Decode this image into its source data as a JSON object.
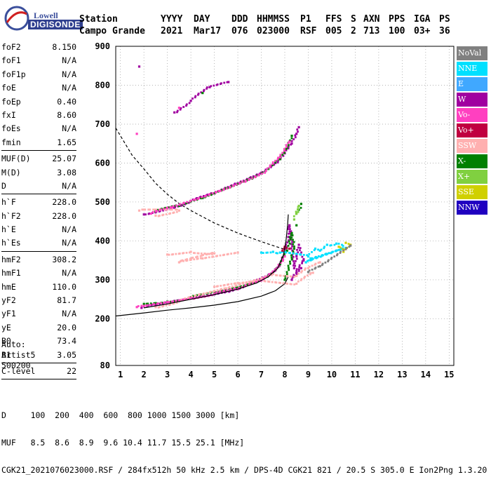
{
  "logo": {
    "line1": "Lowell",
    "line2": "DIGISONDE"
  },
  "header": {
    "station_label": "Station",
    "station_name": "Campo Grande",
    "yyyy_label": "YYYY",
    "yyyy": "2021",
    "day_label": "DAY",
    "day": "Mar17",
    "ddd_label": "DDD",
    "ddd": "076",
    "hhmmss_label": "HHMMSS",
    "hhmmss": "023000",
    "p1_label": "P1",
    "p1": "RSF",
    "ffs_label": "FFS",
    "ffs": "005",
    "s_label": "S",
    "s": "2",
    "axn_label": "AXN",
    "axn": "713",
    "pps_label": "PPS",
    "pps": "100",
    "iga_label": "IGA",
    "iga": "03+",
    "ps_label": "PS",
    "ps": "36"
  },
  "params": {
    "group1": [
      {
        "name": "foF2",
        "value": "8.150"
      },
      {
        "name": "foF1",
        "value": "N/A"
      },
      {
        "name": "foF1p",
        "value": "N/A"
      },
      {
        "name": "foE",
        "value": "N/A"
      },
      {
        "name": "foEp",
        "value": "0.40"
      },
      {
        "name": "fxI",
        "value": "8.60"
      },
      {
        "name": "foEs",
        "value": "N/A"
      },
      {
        "name": "fmin",
        "value": "1.65"
      }
    ],
    "group2": [
      {
        "name": "MUF(D)",
        "value": "25.07"
      },
      {
        "name": "M(D)",
        "value": "3.08"
      },
      {
        "name": "D",
        "value": "N/A"
      }
    ],
    "group3": [
      {
        "name": "h`F",
        "value": "228.0"
      },
      {
        "name": "h`F2",
        "value": "228.0"
      },
      {
        "name": "h`E",
        "value": "N/A"
      },
      {
        "name": "h`Es",
        "value": "N/A"
      }
    ],
    "group4": [
      {
        "name": "hmF2",
        "value": "308.2"
      },
      {
        "name": "hmF1",
        "value": "N/A"
      },
      {
        "name": "hmE",
        "value": "110.0"
      },
      {
        "name": "yF2",
        "value": "81.7"
      },
      {
        "name": "yF1",
        "value": "N/A"
      },
      {
        "name": "yE",
        "value": "20.0"
      },
      {
        "name": "B0",
        "value": "73.4"
      },
      {
        "name": "B1",
        "value": "3.05"
      }
    ],
    "group5": [
      {
        "name": "C-level",
        "value": "22"
      }
    ],
    "auto_line1": "Auto:",
    "auto_line2": "Artist5",
    "auto_line3": "500200"
  },
  "legend": [
    {
      "label": "NoVal",
      "color": "#808080"
    },
    {
      "label": "NNE",
      "color": "#00e0ff"
    },
    {
      "label": "E",
      "color": "#40a8ff"
    },
    {
      "label": "W",
      "color": "#a000a0"
    },
    {
      "label": "Vo-",
      "color": "#ff40c0"
    },
    {
      "label": "Vo+",
      "color": "#c00040"
    },
    {
      "label": "SSW",
      "color": "#ffb0b0"
    },
    {
      "label": "X-",
      "color": "#008000"
    },
    {
      "label": "X+",
      "color": "#80d040"
    },
    {
      "label": "SSE",
      "color": "#d0d000"
    },
    {
      "label": "NNW",
      "color": "#2000c0"
    }
  ],
  "chart_data": {
    "type": "scatter",
    "xlim": [
      0.8,
      15.2
    ],
    "ylim": [
      80,
      900
    ],
    "x_ticks": [
      1,
      2,
      3,
      4,
      5,
      6,
      7,
      8,
      9,
      10,
      11,
      12,
      13,
      14,
      15
    ],
    "y_ticks": [
      80,
      200,
      300,
      400,
      500,
      600,
      700,
      800,
      900
    ],
    "grid": "dotted",
    "series": [
      {
        "mode": "W",
        "color": "#a000a0",
        "points": [
          [
            1.9,
            228
          ],
          [
            2.5,
            235
          ],
          [
            3.5,
            247
          ],
          [
            4.5,
            258
          ],
          [
            5.5,
            270
          ],
          [
            6.3,
            285
          ],
          [
            7.0,
            302
          ],
          [
            7.5,
            318
          ],
          [
            7.8,
            340
          ],
          [
            8.0,
            370
          ],
          [
            8.15,
            410
          ],
          [
            8.2,
            440
          ],
          [
            8.4,
            330
          ],
          [
            8.5,
            360
          ],
          [
            8.6,
            390
          ],
          [
            8.8,
            350
          ],
          [
            8.3,
            300
          ],
          [
            8.7,
            330
          ],
          [
            2.0,
            468
          ],
          [
            3.0,
            482
          ],
          [
            4.0,
            502
          ],
          [
            5.0,
            522
          ],
          [
            6.0,
            548
          ],
          [
            7.0,
            575
          ],
          [
            7.6,
            600
          ],
          [
            8.0,
            625
          ],
          [
            8.3,
            650
          ],
          [
            8.5,
            675
          ],
          [
            8.6,
            692
          ],
          [
            3.3,
            730
          ],
          [
            4.0,
            760
          ],
          [
            4.8,
            795
          ],
          [
            5.6,
            808
          ],
          [
            1.8,
            848
          ]
        ]
      },
      {
        "mode": "X-",
        "color": "#008000",
        "points": [
          [
            2.0,
            238
          ],
          [
            2.5,
            240
          ],
          [
            3.0,
            244
          ],
          [
            4.0,
            255
          ],
          [
            5.0,
            266
          ],
          [
            6.0,
            280
          ],
          [
            6.8,
            295
          ],
          [
            7.4,
            315
          ],
          [
            7.8,
            340
          ],
          [
            8.1,
            375
          ],
          [
            8.3,
            420
          ],
          [
            8.4,
            380
          ],
          [
            8.0,
            300
          ],
          [
            2.5,
            476
          ],
          [
            3.5,
            490
          ],
          [
            4.5,
            510
          ],
          [
            5.5,
            535
          ],
          [
            6.5,
            560
          ],
          [
            7.3,
            585
          ],
          [
            7.8,
            610
          ],
          [
            8.1,
            640
          ],
          [
            8.3,
            670
          ],
          [
            8.6,
            480
          ],
          [
            8.7,
            495
          ],
          [
            4.5,
            780
          ],
          [
            8.5,
            440
          ]
        ]
      },
      {
        "mode": "SSW",
        "color": "#ffb0b0",
        "points": [
          [
            2.5,
            230
          ],
          [
            3.5,
            245
          ],
          [
            4.5,
            262
          ],
          [
            5.5,
            278
          ],
          [
            6.5,
            295
          ],
          [
            7.5,
            315
          ],
          [
            8.5,
            310
          ],
          [
            9.0,
            330
          ],
          [
            9.5,
            345
          ],
          [
            3.0,
            365
          ],
          [
            4.0,
            372
          ],
          [
            5.0,
            368
          ],
          [
            3.5,
            345
          ],
          [
            4.5,
            355
          ],
          [
            6.0,
            370
          ],
          [
            2.5,
            465
          ],
          [
            3.5,
            478
          ],
          [
            1.8,
            478
          ],
          [
            5.0,
            282
          ],
          [
            6.0,
            292
          ],
          [
            7.0,
            300
          ],
          [
            8.5,
            290
          ],
          [
            9.2,
            318
          ]
        ]
      },
      {
        "mode": "Vo-",
        "color": "#ff40c0",
        "points": [
          [
            1.7,
            230
          ],
          [
            2.0,
            233
          ],
          [
            3.0,
            243
          ],
          [
            4.0,
            253
          ],
          [
            5.0,
            264
          ],
          [
            6.0,
            276
          ],
          [
            7.0,
            298
          ],
          [
            7.6,
            325
          ],
          [
            8.0,
            360
          ],
          [
            2.3,
            470
          ],
          [
            3.2,
            486
          ],
          [
            4.2,
            506
          ],
          [
            5.2,
            528
          ],
          [
            6.2,
            552
          ],
          [
            7.2,
            580
          ],
          [
            7.8,
            615
          ],
          [
            8.2,
            655
          ],
          [
            1.7,
            675
          ],
          [
            3.5,
            742
          ]
        ]
      },
      {
        "mode": "NNE",
        "color": "#00e0ff",
        "points": [
          [
            7.0,
            370
          ],
          [
            7.5,
            372
          ],
          [
            7.8,
            370
          ],
          [
            9.0,
            360
          ],
          [
            9.3,
            380
          ],
          [
            9.5,
            375
          ],
          [
            9.8,
            390
          ],
          [
            10.2,
            393
          ],
          [
            10.6,
            382
          ],
          [
            8.9,
            345
          ],
          [
            9.1,
            355
          ],
          [
            10.4,
            380
          ]
        ]
      },
      {
        "mode": "SSE",
        "color": "#d0d000",
        "points": [
          [
            10.3,
            385
          ],
          [
            10.5,
            372
          ],
          [
            10.8,
            390
          ],
          [
            10.6,
            395
          ]
        ]
      },
      {
        "mode": "Vo+",
        "color": "#c00040",
        "points": [
          [
            7.9,
            375
          ],
          [
            8.0,
            385
          ],
          [
            8.2,
            380
          ]
        ]
      },
      {
        "mode": "X+",
        "color": "#80d040",
        "points": [
          [
            8.5,
            470
          ],
          [
            8.6,
            490
          ],
          [
            8.4,
            455
          ]
        ]
      },
      {
        "mode": "NoVal",
        "color": "#808080",
        "points": [
          [
            9.0,
            320
          ],
          [
            9.5,
            335
          ],
          [
            10.8,
            388
          ]
        ]
      }
    ],
    "profile_line": {
      "color": "#000000",
      "points": [
        [
          0.8,
          207
        ],
        [
          2.0,
          215
        ],
        [
          3.0,
          222
        ],
        [
          4.0,
          228
        ],
        [
          5.0,
          235
        ],
        [
          6.0,
          244
        ],
        [
          7.0,
          258
        ],
        [
          7.6,
          272
        ],
        [
          8.0,
          290
        ],
        [
          8.15,
          308
        ]
      ]
    },
    "virtual_height_trace": {
      "color": "#000000",
      "points": [
        [
          2.0,
          228
        ],
        [
          3.0,
          238
        ],
        [
          4.0,
          250
        ],
        [
          5.0,
          262
        ],
        [
          6.0,
          276
        ],
        [
          6.8,
          292
        ],
        [
          7.3,
          308
        ],
        [
          7.7,
          330
        ],
        [
          7.95,
          365
        ],
        [
          8.05,
          400
        ],
        [
          8.12,
          440
        ],
        [
          8.15,
          468
        ]
      ]
    },
    "muf_dashed": {
      "color": "#000000",
      "points": [
        [
          0.8,
          690
        ],
        [
          1.5,
          620
        ],
        [
          2.0,
          585
        ],
        [
          2.5,
          548
        ],
        [
          3.0,
          520
        ],
        [
          3.5,
          496
        ],
        [
          4.0,
          478
        ],
        [
          5.0,
          446
        ],
        [
          6.0,
          420
        ],
        [
          7.0,
          398
        ],
        [
          7.5,
          388
        ],
        [
          8.0,
          378
        ],
        [
          8.15,
          375
        ]
      ]
    }
  },
  "footer": {
    "d_label": "D",
    "d_values": "100  200  400  600  800 1000 1500 3000 [km]",
    "muf_label": "MUF",
    "muf_values": "8.5  8.6  8.9  9.6 10.4 11.7 15.5 25.1 [MHz]",
    "file_line": "CGK21_2021076023000.RSF / 284fx512h 50 kHz 2.5 km / DPS-4D CGK21 821 / 20.5 S 305.0 E Ion2Png 1.3.20"
  }
}
